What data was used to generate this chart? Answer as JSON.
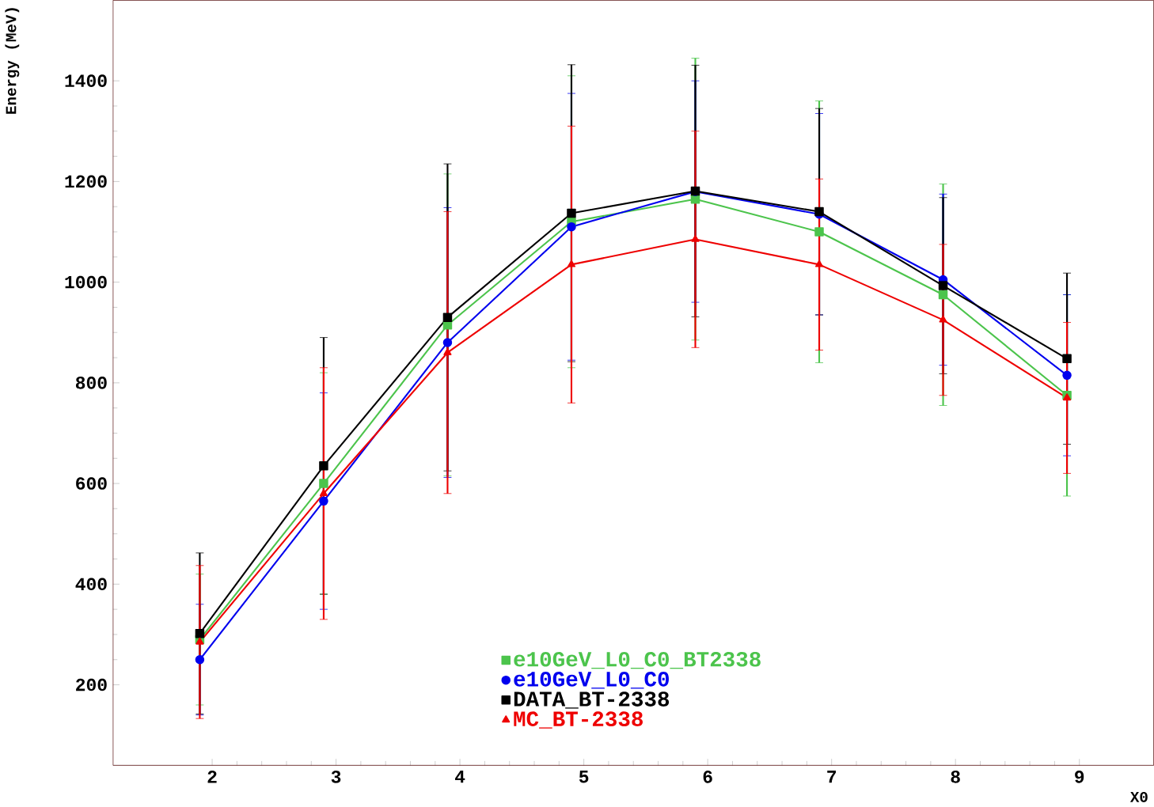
{
  "chart_data": {
    "type": "line",
    "xlabel": "X0",
    "ylabel": "Energy (MeV)",
    "xlim": [
      1.2,
      9.6
    ],
    "ylim": [
      40,
      1560
    ],
    "xticks": [
      2,
      3,
      4,
      5,
      6,
      7,
      8,
      9
    ],
    "yticks": [
      200,
      400,
      600,
      800,
      1000,
      1200,
      1400
    ],
    "legend": "bottom",
    "x": [
      1.9,
      2.9,
      3.9,
      4.9,
      5.9,
      6.9,
      7.9,
      8.9
    ],
    "series": [
      {
        "name": "e10GeV_L0_C0_BT2338",
        "color": "#4cc44c",
        "marker": "square",
        "values": [
          290,
          600,
          915,
          1120,
          1165,
          1100,
          975,
          775
        ],
        "errors": [
          130,
          220,
          300,
          290,
          280,
          260,
          220,
          200
        ]
      },
      {
        "name": "e10GeV_L0_C0",
        "color": "#0000ee",
        "marker": "circle",
        "values": [
          250,
          565,
          880,
          1110,
          1180,
          1135,
          1005,
          815
        ],
        "errors": [
          110,
          215,
          268,
          265,
          220,
          200,
          170,
          160
        ]
      },
      {
        "name": "DATA_BT-2338",
        "color": "#000000",
        "marker": "square",
        "values": [
          302,
          635,
          930,
          1137,
          1181,
          1140,
          993,
          848
        ],
        "errors": [
          160,
          255,
          305,
          295,
          250,
          205,
          175,
          170
        ]
      },
      {
        "name": "MC_BT-2338",
        "color": "#ee0000",
        "marker": "triangle",
        "values": [
          285,
          580,
          860,
          1035,
          1085,
          1035,
          925,
          770
        ],
        "errors": [
          152,
          250,
          280,
          275,
          215,
          170,
          150,
          150
        ]
      }
    ]
  }
}
